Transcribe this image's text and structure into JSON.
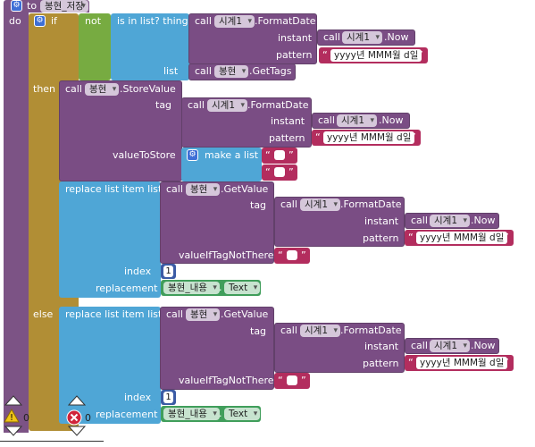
{
  "procedure": {
    "to": "to",
    "name": "봉현_저장",
    "do": "do"
  },
  "if_block": {
    "if": "if",
    "then": "then",
    "else": "else"
  },
  "not_label": "not",
  "is_in_list": "is in list? thing",
  "list_label": "list",
  "call": "call",
  "clock_component": "시계1",
  "tinydb_component": "봉현",
  "format_date": ".FormatDate",
  "instant": "instant",
  "now": ".Now",
  "pattern": "pattern",
  "pattern_value": "yyyy년 MMM월 d일",
  "get_tags": ".GetTags",
  "store_value": ".StoreValue",
  "tag": "tag",
  "value_to_store": "valueToStore",
  "make_a_list": "make a list",
  "replace_list_item": "replace list item  list",
  "get_value": ".GetValue",
  "value_if_tag_not_there": "valueIfTagNotThere",
  "index": "index",
  "index_value": "1",
  "replacement": "replacement",
  "textbox_component": "봉현_내용",
  "text_prop": "Text",
  "quote_open": "“",
  "quote_close": "”",
  "warnings": {
    "count": "0"
  },
  "errors": {
    "count": "0"
  },
  "colors": {
    "procedure": "#7C5385",
    "control": "#B18E35",
    "logic": "#77AB41",
    "lists": "#4FA6D6",
    "component": "#7A4D84",
    "text": "#B32D5E",
    "number": "#3B5BA5",
    "variable": "#409E5B"
  }
}
